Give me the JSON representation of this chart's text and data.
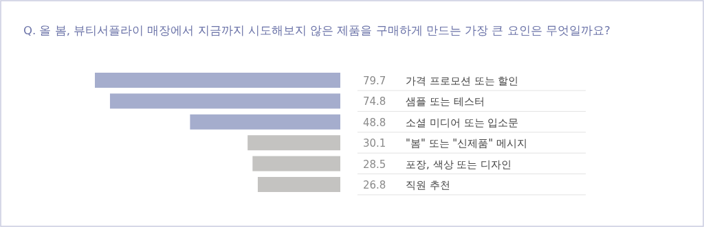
{
  "chart_data": {
    "type": "bar",
    "orientation": "horizontal",
    "title": "Q. 올 봄, 뷰티서플라이 매장에서 지금까지 시도해보지 않은 제품을 구매하게 만드는 가장 큰 요인은 무엇일까요?",
    "categories": [
      "가격 프로모션 또는 할인",
      "샘플 또는 테스터",
      "소셜 미디어 또는 입소문",
      "\"봄\" 또는 \"신제품\" 메시지",
      "포장, 색상 또는 디자인",
      "직원 추천"
    ],
    "values": [
      79.7,
      74.8,
      48.8,
      30.1,
      28.5,
      26.8
    ],
    "colors": [
      "#a5adcd",
      "#a5adcd",
      "#a5adcd",
      "#c4c3c1",
      "#c4c3c1",
      "#c4c3c1"
    ],
    "data_labels": true
  }
}
